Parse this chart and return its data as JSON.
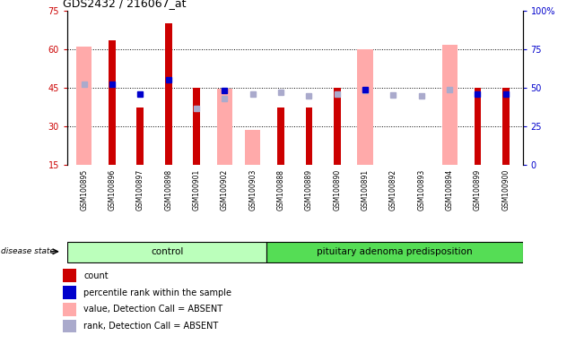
{
  "title": "GDS2432 / 216067_at",
  "samples": [
    "GSM100895",
    "GSM100896",
    "GSM100897",
    "GSM100898",
    "GSM100901",
    "GSM100902",
    "GSM100903",
    "GSM100888",
    "GSM100889",
    "GSM100890",
    "GSM100891",
    "GSM100892",
    "GSM100893",
    "GSM100894",
    "GSM100899",
    "GSM100900"
  ],
  "count_values": [
    null,
    63.5,
    37.5,
    70,
    45,
    null,
    null,
    37.5,
    37.5,
    45,
    null,
    null,
    null,
    null,
    45,
    45
  ],
  "value_absent": [
    61,
    null,
    null,
    null,
    15,
    44.5,
    28.5,
    null,
    null,
    null,
    60,
    null,
    null,
    61.5,
    null,
    null
  ],
  "percentile_rank": [
    null,
    52,
    46,
    55,
    null,
    48.5,
    null,
    null,
    null,
    null,
    49,
    null,
    null,
    null,
    46,
    46
  ],
  "rank_absent": [
    52,
    null,
    null,
    null,
    36.5,
    43,
    46,
    47,
    44.5,
    46,
    48,
    45.5,
    45,
    49,
    null,
    null
  ],
  "ylim_left": [
    15,
    75
  ],
  "ylim_right": [
    0,
    100
  ],
  "yticks_left": [
    15,
    30,
    45,
    60,
    75
  ],
  "yticks_right": [
    0,
    25,
    50,
    75,
    100
  ],
  "group_control_count": 7,
  "left_color": "#cc0000",
  "pink_color": "#ffaaaa",
  "blue_color": "#0000cc",
  "lightblue_color": "#aaaacc",
  "group_control_color": "#bbffbb",
  "group_disease_color": "#55dd55",
  "xtick_bg_color": "#cccccc",
  "background_color": "#ffffff",
  "grid_lines_at": [
    30,
    45,
    60
  ]
}
